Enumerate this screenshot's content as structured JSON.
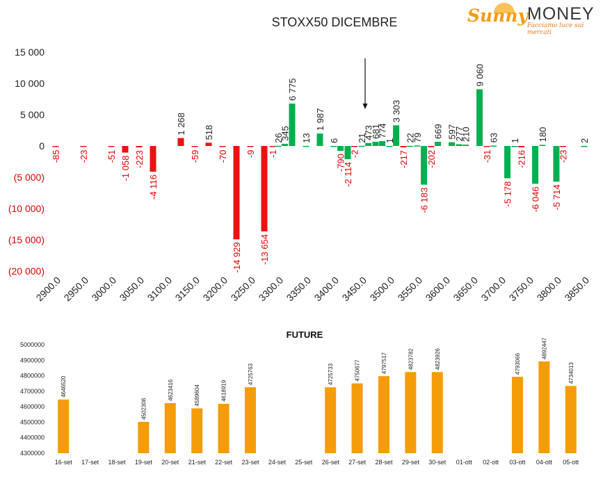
{
  "logo": {
    "brand1": "Sunny",
    "brand2": "MONEY",
    "tagline": "Facciamo luce sui mercati"
  },
  "colors": {
    "positive": "#00b050",
    "negative": "#ee1111",
    "future": "#f59c0a",
    "axis_neg_text": "#e00000"
  },
  "chart_data": [
    {
      "type": "bar",
      "title": "STOXX50 DICEMBRE",
      "xlabel": "",
      "ylabel": "",
      "ylim": [
        -20000,
        15000
      ],
      "yticks": [
        15000,
        10000,
        5000,
        0,
        -5000,
        -10000,
        -15000,
        -20000
      ],
      "ytick_labels": [
        "15 000",
        "10 000",
        "5 000",
        "0",
        "(5 000)",
        "(10 000)",
        "(15 000)",
        "(20 000)"
      ],
      "x_tick_labels": [
        "2900.0",
        "2950.0",
        "3000.0",
        "3050.0",
        "3100.0",
        "3150.0",
        "3200.0",
        "3250.0",
        "3300.0",
        "3350.0",
        "3400.0",
        "3450.0",
        "3500.0",
        "3550.0",
        "3600.0",
        "3650.0",
        "3700.0",
        "3750.0",
        "3800.0",
        "3850.0"
      ],
      "x_range": [
        2900,
        3850
      ],
      "marker_arrow_x": 3460,
      "grid": false,
      "bars": [
        {
          "x": 2900,
          "value": -85,
          "label": "-85"
        },
        {
          "x": 2950,
          "value": -23,
          "label": "-23"
        },
        {
          "x": 3000,
          "value": -51,
          "label": "-51"
        },
        {
          "x": 3025,
          "value": -1058,
          "label": "-1 058"
        },
        {
          "x": 3050,
          "value": -223,
          "label": "-223"
        },
        {
          "x": 3075,
          "value": -4116,
          "label": "-4 116"
        },
        {
          "x": 3125,
          "value": 1268,
          "label": "1 268"
        },
        {
          "x": 3150,
          "value": -59,
          "label": "-59"
        },
        {
          "x": 3175,
          "value": 518,
          "label": "518"
        },
        {
          "x": 3200,
          "value": -70,
          "label": "-70"
        },
        {
          "x": 3225,
          "value": -14929,
          "label": "-14 929"
        },
        {
          "x": 3250,
          "value": -9,
          "label": "-9"
        },
        {
          "x": 3275,
          "value": -13654,
          "label": "-13 654"
        },
        {
          "x": 3290,
          "value": -1,
          "label": "-1"
        },
        {
          "x": 3300,
          "value": 26,
          "label": "26"
        },
        {
          "x": 3312,
          "value": 345,
          "label": "345"
        },
        {
          "x": 3325,
          "value": 6775,
          "label": "6 775"
        },
        {
          "x": 3350,
          "value": 13,
          "label": "13"
        },
        {
          "x": 3375,
          "value": 1987,
          "label": "1 987"
        },
        {
          "x": 3400,
          "value": 6,
          "label": "6"
        },
        {
          "x": 3412,
          "value": -790,
          "label": "-790"
        },
        {
          "x": 3425,
          "value": -2114,
          "label": "-2 114"
        },
        {
          "x": 3437,
          "value": -2,
          "label": "-2"
        },
        {
          "x": 3450,
          "value": 21,
          "label": "21"
        },
        {
          "x": 3462,
          "value": 473,
          "label": "473"
        },
        {
          "x": 3475,
          "value": 681,
          "label": "681"
        },
        {
          "x": 3487,
          "value": 774,
          "label": "774"
        },
        {
          "x": 3500,
          "value": 1,
          "label": "1"
        },
        {
          "x": 3512,
          "value": 3303,
          "label": "3 303"
        },
        {
          "x": 3525,
          "value": -217,
          "label": "-217"
        },
        {
          "x": 3537,
          "value": 22,
          "label": "22"
        },
        {
          "x": 3550,
          "value": 79,
          "label": "79"
        },
        {
          "x": 3562,
          "value": -6183,
          "label": "-6 183"
        },
        {
          "x": 3575,
          "value": -202,
          "label": "-202"
        },
        {
          "x": 3587,
          "value": 669,
          "label": "669"
        },
        {
          "x": 3612,
          "value": 597,
          "label": "597"
        },
        {
          "x": 3625,
          "value": 277,
          "label": "277"
        },
        {
          "x": 3637,
          "value": 210,
          "label": "210"
        },
        {
          "x": 3662,
          "value": 9060,
          "label": "9 060"
        },
        {
          "x": 3675,
          "value": -31,
          "label": "-31"
        },
        {
          "x": 3687,
          "value": 63,
          "label": "63"
        },
        {
          "x": 3712,
          "value": -5178,
          "label": "-5 178"
        },
        {
          "x": 3725,
          "value": 1,
          "label": "1"
        },
        {
          "x": 3737,
          "value": -216,
          "label": "-216"
        },
        {
          "x": 3762,
          "value": -6046,
          "label": "-6 046"
        },
        {
          "x": 3775,
          "value": 180,
          "label": "180"
        },
        {
          "x": 3800,
          "value": -5714,
          "label": "-5 714"
        },
        {
          "x": 3812,
          "value": -23,
          "label": "-23"
        },
        {
          "x": 3850,
          "value": 2,
          "label": "2"
        }
      ]
    },
    {
      "type": "bar",
      "title": "FUTURE",
      "xlabel": "",
      "ylabel": "",
      "ylim": [
        4300000,
        5000000
      ],
      "yticks": [
        4300000,
        4400000,
        4500000,
        4600000,
        4700000,
        4800000,
        4900000,
        5000000
      ],
      "ytick_labels": [
        "4300000",
        "4400000",
        "4500000",
        "4600000",
        "4700000",
        "4800000",
        "4900000",
        "5000000"
      ],
      "grid": false,
      "categories": [
        "16-set",
        "17-set",
        "18-set",
        "19-set",
        "20-set",
        "21-set",
        "22-set",
        "23-set",
        "24-set",
        "25-set",
        "26-set",
        "27-set",
        "28-set",
        "29-set",
        "30-set",
        "01-ott",
        "02-ott",
        "03-ott",
        "04-ott",
        "05-ott"
      ],
      "values": [
        4646520,
        null,
        null,
        4502308,
        4623416,
        4589604,
        4618919,
        4725763,
        null,
        null,
        4725733,
        4750677,
        4797517,
        4823782,
        4823926,
        null,
        null,
        4793066,
        4892447,
        4734013
      ],
      "value_labels": [
        "4646520",
        "",
        "",
        "4502308",
        "4623416",
        "4589604",
        "4618919",
        "4725763",
        "",
        "",
        "4725733",
        "4750677",
        "4797517",
        "4823782",
        "4823926",
        "",
        "",
        "4793066",
        "4892447",
        "4734013"
      ]
    }
  ]
}
